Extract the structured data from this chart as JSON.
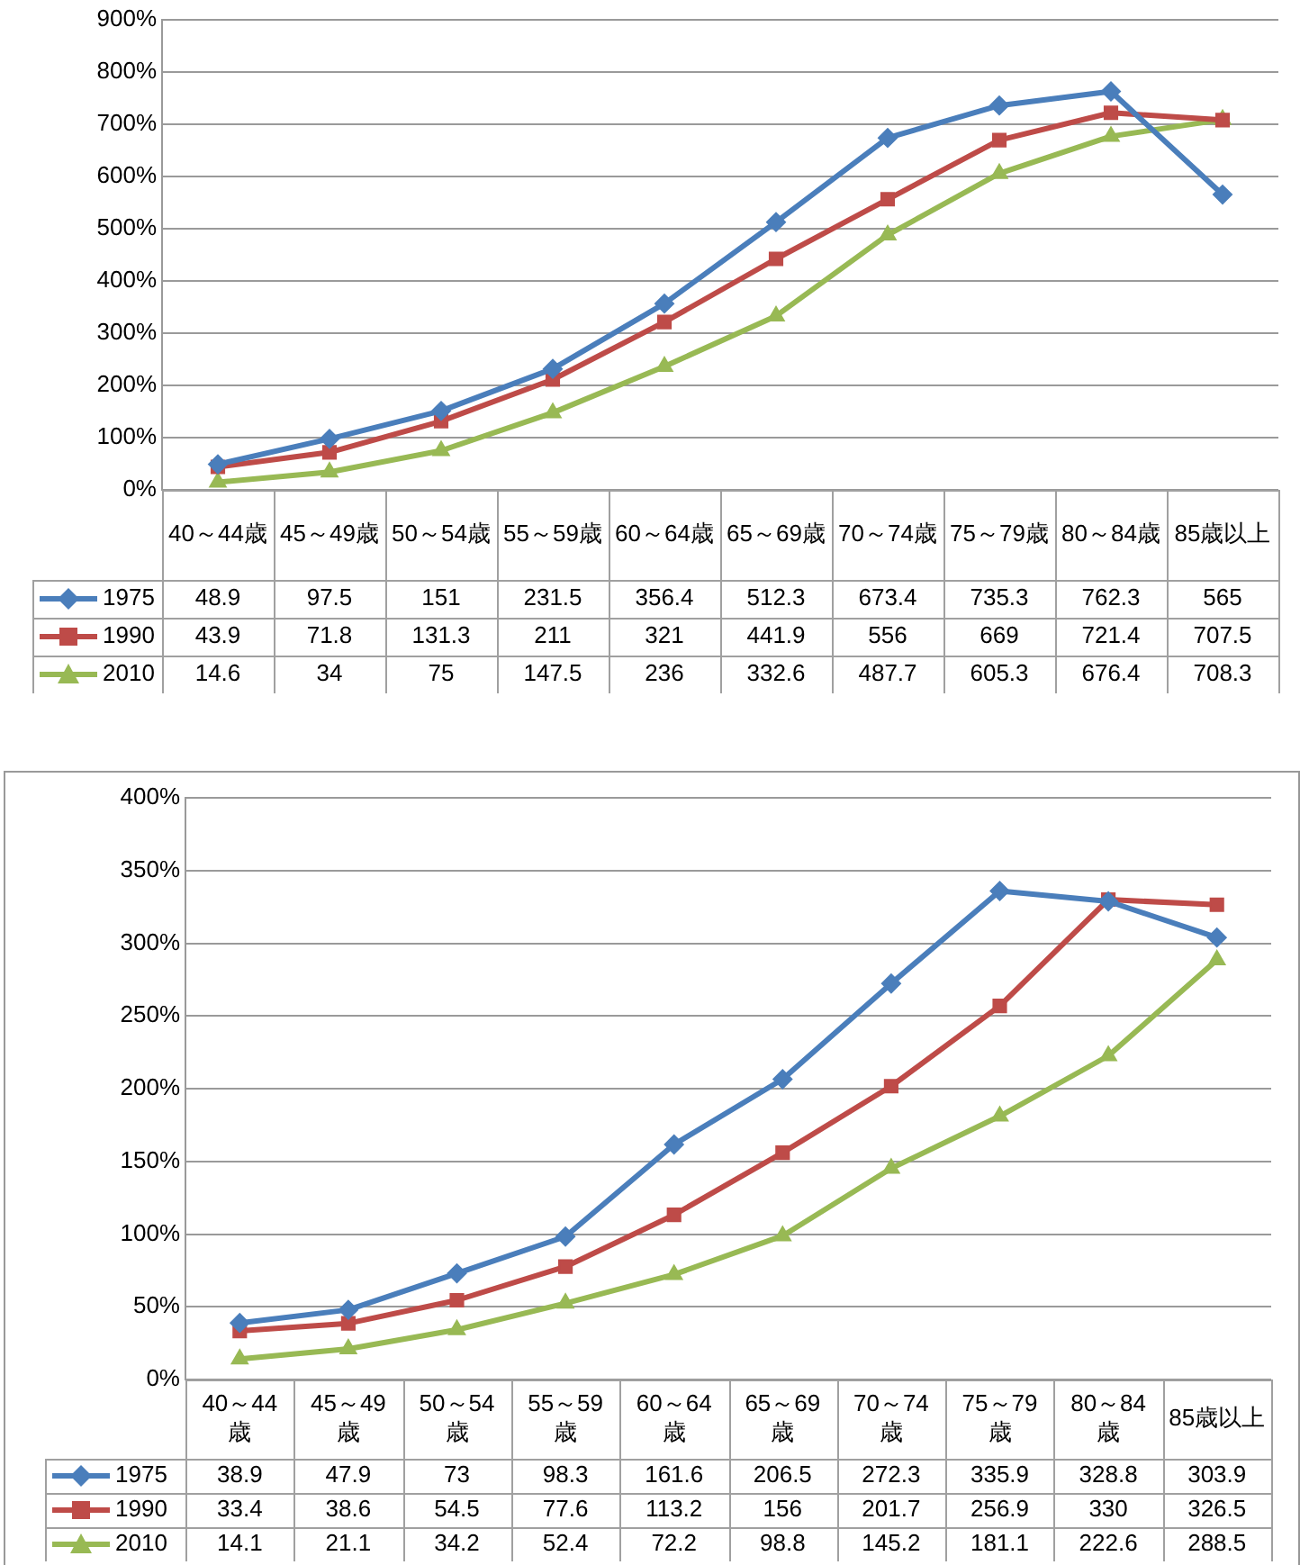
{
  "chart_data": [
    {
      "type": "line",
      "categories": [
        "40～44歳",
        "45～49歳",
        "50～54歳",
        "55～59歳",
        "60～64歳",
        "65～69歳",
        "70～74歳",
        "75～79歳",
        "80～84歳",
        "85歳以上"
      ],
      "series": [
        {
          "name": "1975",
          "color": "#4a7ebb",
          "marker": "diamond",
          "values": [
            48.9,
            97.5,
            151.0,
            231.5,
            356.4,
            512.3,
            673.4,
            735.3,
            762.3,
            565.0
          ]
        },
        {
          "name": "1990",
          "color": "#be4b48",
          "marker": "square",
          "values": [
            43.9,
            71.8,
            131.3,
            211.0,
            321.0,
            441.9,
            556.0,
            669.0,
            721.4,
            707.5
          ]
        },
        {
          "name": "2010",
          "color": "#98b954",
          "marker": "triangle",
          "values": [
            14.6,
            34.0,
            75.0,
            147.5,
            236.0,
            332.6,
            487.7,
            605.3,
            676.4,
            708.3
          ]
        }
      ],
      "ylim": [
        0,
        900
      ],
      "yticks": [
        {
          "value": 0,
          "label": "0%"
        },
        {
          "value": 100,
          "label": "100%"
        },
        {
          "value": 200,
          "label": "200%"
        },
        {
          "value": 300,
          "label": "300%"
        },
        {
          "value": 400,
          "label": "400%"
        },
        {
          "value": 500,
          "label": "500%"
        },
        {
          "value": 600,
          "label": "600%"
        },
        {
          "value": 700,
          "label": "700%"
        },
        {
          "value": 800,
          "label": "800%"
        },
        {
          "value": 900,
          "label": "900%"
        }
      ],
      "grid": "y",
      "legend": "bottom",
      "data_labels": true
    },
    {
      "type": "line",
      "categories": [
        "40～44歳",
        "45～49歳",
        "50～54歳",
        "55～59歳",
        "60～64歳",
        "65～69歳",
        "70～74歳",
        "75～79歳",
        "80～84歳",
        "85歳以上"
      ],
      "series": [
        {
          "name": "1975",
          "color": "#4a7ebb",
          "marker": "diamond",
          "values": [
            38.9,
            47.9,
            73.0,
            98.3,
            161.6,
            206.5,
            272.3,
            335.9,
            328.8,
            303.9
          ]
        },
        {
          "name": "1990",
          "color": "#be4b48",
          "marker": "square",
          "values": [
            33.4,
            38.6,
            54.5,
            77.6,
            113.2,
            156.0,
            201.7,
            256.9,
            330.0,
            326.5
          ]
        },
        {
          "name": "2010",
          "color": "#98b954",
          "marker": "triangle",
          "values": [
            14.1,
            21.1,
            34.2,
            52.4,
            72.2,
            98.8,
            145.2,
            181.1,
            222.6,
            288.5
          ]
        }
      ],
      "ylim": [
        0,
        400
      ],
      "yticks": [
        {
          "value": 0,
          "label": "0%"
        },
        {
          "value": 50,
          "label": "50%"
        },
        {
          "value": 100,
          "label": "100%"
        },
        {
          "value": 150,
          "label": "150%"
        },
        {
          "value": 200,
          "label": "200%"
        },
        {
          "value": 250,
          "label": "250%"
        },
        {
          "value": 300,
          "label": "300%"
        },
        {
          "value": 350,
          "label": "350%"
        },
        {
          "value": 400,
          "label": "400%"
        }
      ],
      "grid": "y",
      "legend": "bottom",
      "data_labels": true
    }
  ]
}
